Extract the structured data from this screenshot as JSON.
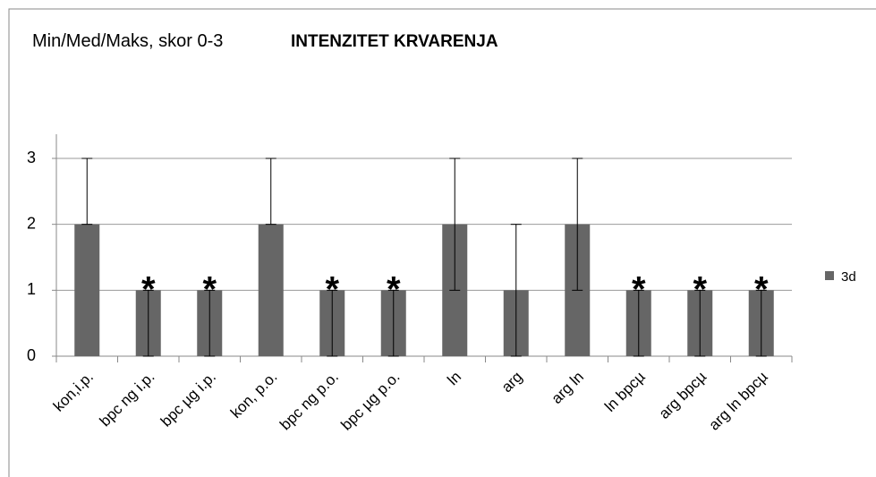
{
  "chart_data": {
    "type": "bar",
    "title": "Min/Med/Maks, skor 0-3",
    "subtitle": "INTENZITET KRVARENJA",
    "categories": [
      "kon,i.p.",
      "bpc ng i.p.",
      "bpc µg i.p.",
      "kon, p.o.",
      "bpc ng p.o.",
      "bpc µg p.o.",
      "ln",
      "arg",
      "arg ln",
      "ln bpcµ",
      "arg bpcµ",
      "arg ln bpcµ"
    ],
    "series": [
      {
        "name": "3d",
        "color": "#666666",
        "values": [
          2,
          1,
          1,
          2,
          1,
          1,
          2,
          1,
          2,
          1,
          1,
          1
        ],
        "min": [
          2,
          0,
          0,
          2,
          0,
          0,
          1,
          0,
          1,
          0,
          0,
          0
        ],
        "max": [
          3,
          1,
          1,
          3,
          1,
          1,
          3,
          2,
          3,
          1,
          1,
          1
        ]
      }
    ],
    "markers": [
      null,
      "*",
      "*",
      null,
      "*",
      "*",
      null,
      null,
      null,
      "*",
      "*",
      "*"
    ],
    "ylim": [
      0,
      3
    ],
    "yticks": [
      0,
      1,
      2,
      3
    ],
    "grid": true,
    "legend": "right"
  }
}
